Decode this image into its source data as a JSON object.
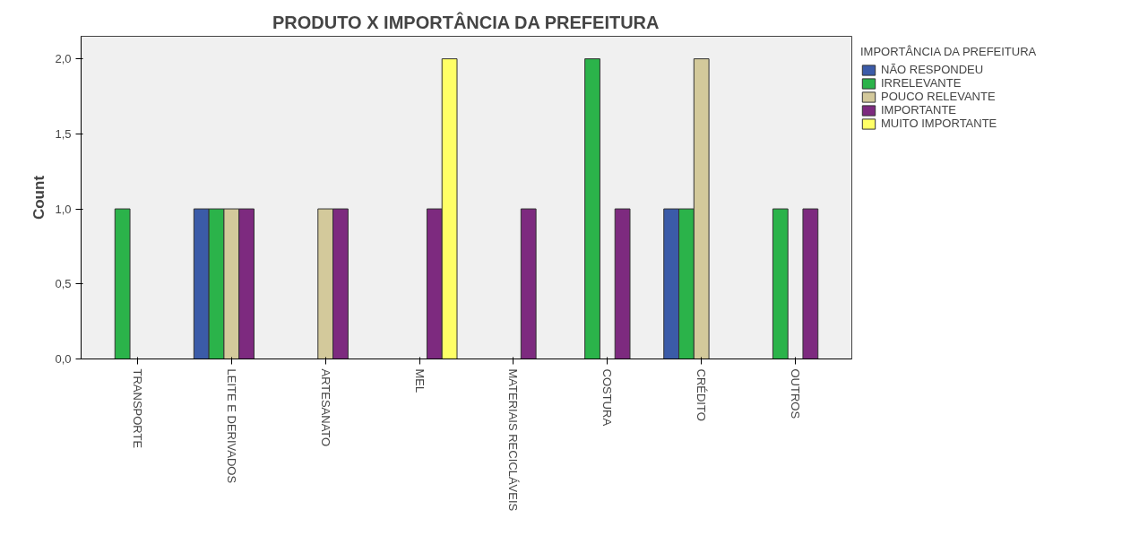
{
  "chart_data": {
    "type": "bar",
    "title": "PRODUTO X IMPORTÂNCIA DA PREFEITURA",
    "ylabel": "Count",
    "legend_title": "IMPORTÂNCIA DA PREFEITURA",
    "categories": [
      "TRANSPORTE",
      "LEITE E DERIVADOS",
      "ARTESANATO",
      "MEL",
      "MATERIAIS RECICLÁVEIS",
      "COSTURA",
      "CRÉDITO",
      "OUTROS"
    ],
    "series": [
      {
        "name": "NÃO RESPONDEU",
        "color": "#3b5ba8",
        "values": [
          null,
          1,
          null,
          null,
          null,
          null,
          1,
          null
        ]
      },
      {
        "name": "IRRELEVANTE",
        "color": "#2bb34a",
        "values": [
          1,
          1,
          null,
          null,
          null,
          2,
          1,
          1
        ]
      },
      {
        "name": "POUCO RELEVANTE",
        "color": "#d3c99b",
        "values": [
          null,
          1,
          1,
          null,
          null,
          null,
          2,
          null
        ]
      },
      {
        "name": "IMPORTANTE",
        "color": "#7d2a7f",
        "values": [
          null,
          1,
          1,
          1,
          1,
          1,
          null,
          1
        ]
      },
      {
        "name": "MUITO IMPORTANTE",
        "color": "#ffff66",
        "values": [
          null,
          null,
          null,
          2,
          null,
          null,
          null,
          null
        ]
      }
    ],
    "ylim": [
      0,
      2.15
    ],
    "yticks": [
      {
        "value": 0,
        "label": "0,0"
      },
      {
        "value": 0.5,
        "label": "0,5"
      },
      {
        "value": 1,
        "label": "1,0"
      },
      {
        "value": 1.5,
        "label": "1,5"
      },
      {
        "value": 2,
        "label": "2,0"
      }
    ],
    "grid": false,
    "legend": "right"
  }
}
